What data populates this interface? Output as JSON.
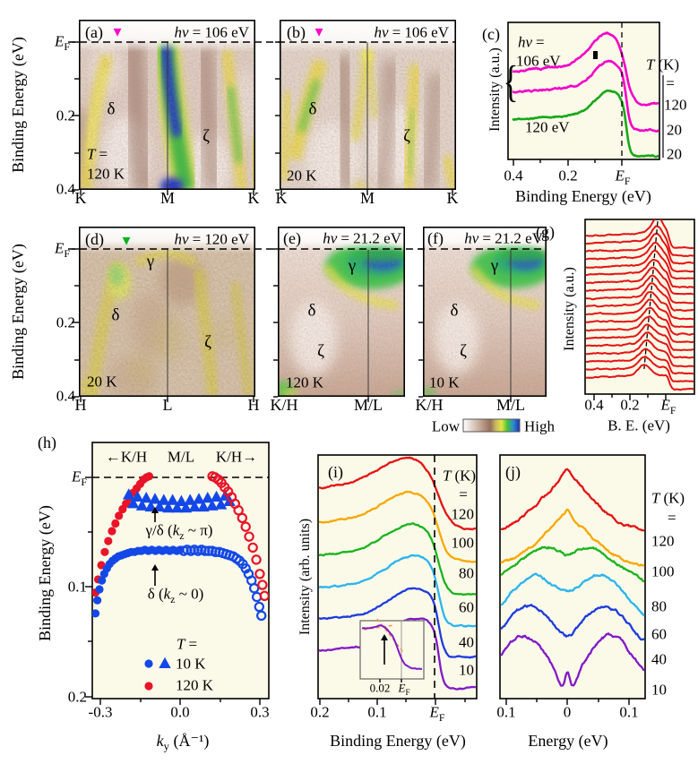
{
  "labels": {
    "be_ev": "Binding Energy (eV)",
    "ef_main": "E",
    "ef_sub": "F",
    "t02": "0.2",
    "t04": "0.4",
    "t01": "0.1",
    "t00": "0",
    "a_tag": "(a)",
    "b_tag": "(b)",
    "c_tag": "(c)",
    "d_tag": "(d)",
    "e_tag": "(e)",
    "f_tag": "(f)",
    "g_tag": "(g)",
    "h_tag": "(h)",
    "i_tag": "(i)",
    "j_tag": "(j)",
    "hv": "hν",
    "eq": "=",
    "eq106": "= 106 eV",
    "eq120": "= 120 eV",
    "eq212": "= 21.2 eV",
    "c_106": "106 eV",
    "c_120": "120 eV",
    "delta": "δ",
    "zeta": "ζ",
    "gamma": "γ",
    "T_it": "T",
    "k_unit": "(K)",
    "a_T": "120 K",
    "b_T": "20 K",
    "d_T": "20 K",
    "e_T": "120 K",
    "f_T": "10 K",
    "K": "K",
    "M": "M",
    "H": "H",
    "L_pt": "L",
    "KH": "K/H",
    "ML": "M/L",
    "intensity_au": "Intensity (a.u.)",
    "intensity_arb": "Intensity (arb. units)",
    "low": "Low",
    "high": "High",
    "g_xlabel": "B. E. (eV)",
    "c_temps": [
      "120",
      "20",
      "20"
    ],
    "ij_temps": [
      "120",
      "100",
      "80",
      "60",
      "40",
      "10"
    ],
    "h_top_left": "←K/H",
    "h_top_mid": "M/L",
    "h_top_right": "K/H→",
    "h_ann1_a": "γ/δ (",
    "h_ann1_k": "k",
    "h_ann1_z": "z",
    "h_ann1_b": " ~ π)",
    "h_ann2_a": "δ (",
    "h_ann2_b": " ~ 0)",
    "h_10K": "10 K",
    "h_120K": "120 K",
    "h_xm03": "-0.3",
    "h_x00": "0.0",
    "h_x03": "0.3",
    "ky_k": "k",
    "ky_sub": "y",
    "ky_unit": " (Å⁻¹)",
    "j_xlabel": "Energy (eV)",
    "i_inset_tick": "0.02",
    "brace": "{"
  },
  "icons": {
    "down_triangle": "▼"
  },
  "colors": {
    "magenta": "#f400c8",
    "green_curve": "#18a818",
    "cut_marker_a": "#ff00cc",
    "cut_marker_d": "#00b41e",
    "red": "#e41414",
    "orange": "#f7a800",
    "green": "#1cb41c",
    "cyan": "#2cb4f0",
    "blue": "#1e3cdc",
    "purple": "#8219c8",
    "scatter_blue": "#1448e6",
    "scatter_red": "#e81428",
    "panel_bg": "#fbfae9"
  },
  "chart_data": [
    {
      "id": "a",
      "type": "heatmap",
      "hv_eV": 106,
      "T_K": 120,
      "k_path": [
        "K",
        "M",
        "K"
      ],
      "bands": [
        "δ",
        "ζ"
      ],
      "yticks": [
        "EF",
        "0.2",
        "0.4"
      ],
      "colormap": "Low:white -> brown -> yellow -> green -> blue:High"
    },
    {
      "id": "b",
      "type": "heatmap",
      "hv_eV": 106,
      "T_K": 20,
      "k_path": [
        "K",
        "M",
        "K"
      ],
      "bands": [
        "δ",
        "ζ"
      ]
    },
    {
      "id": "c",
      "type": "line",
      "ylabel": "Intensity (a.u.)",
      "xlabel": "Binding Energy (eV)",
      "xticks": [
        "0.4",
        "0.2",
        "EF"
      ],
      "right_label": "T (K) =",
      "curves": [
        {
          "label": "106 eV",
          "T_K": 120,
          "color": "#f400c8",
          "base": 80,
          "lift": 26,
          "amp": 34,
          "peak_eV": 0.055,
          "peak_w": 0.062,
          "drop": 36,
          "edge_w": 0.013,
          "edge0": -0.018,
          "jit": 1.4
        },
        {
          "label": "106 eV",
          "T_K": 20,
          "color": "#f400c8",
          "base": 103,
          "lift": 22,
          "amp": 26,
          "peak_eV": 0.05,
          "peak_w": 0.055,
          "drop": 42,
          "edge_w": 0.007,
          "edge0": -0.018,
          "jit": 1.4
        },
        {
          "label": "120 eV",
          "T_K": 20,
          "color": "#18a818",
          "base": 133,
          "lift": 20,
          "amp": 24,
          "peak_eV": 0.046,
          "peak_w": 0.052,
          "drop": 41,
          "edge_w": 0.007,
          "edge0": -0.018,
          "jit": 1.2
        }
      ]
    },
    {
      "id": "d",
      "type": "heatmap",
      "hv_eV": 120,
      "T_K": 20,
      "k_path": [
        "H",
        "L",
        "H"
      ],
      "bands": [
        "γ",
        "δ",
        "ζ"
      ]
    },
    {
      "id": "e",
      "type": "heatmap",
      "hv_eV": 21.2,
      "T_K": 120,
      "k_path": [
        "K/H",
        "M/L"
      ],
      "bands": [
        "γ",
        "δ",
        "ζ"
      ]
    },
    {
      "id": "f",
      "type": "heatmap",
      "hv_eV": 21.2,
      "T_K": 10,
      "k_path": [
        "K/H",
        "M/L"
      ],
      "bands": [
        "γ",
        "δ",
        "ζ"
      ]
    },
    {
      "id": "g",
      "type": "edc-stack",
      "color": "#e41414",
      "n": 19,
      "ylabel": "Intensity (a.u.)",
      "xlabel": "B. E. (eV)",
      "xticks": [
        "0.4",
        "0.2",
        "EF"
      ],
      "base_y0": 263,
      "base_dy": 8.8,
      "amp0": 17,
      "amp_d": -0.32,
      "peak_eV0": 0.045,
      "peak_eV_d": 0.0042,
      "lift": 7,
      "peak_w": 0.032,
      "drop": 13,
      "edge_w": 0.007,
      "edge0": -0.02,
      "jit": 0.9,
      "peak_guide": "dashed line through dispersing peak positions"
    },
    {
      "id": "h",
      "type": "scatter",
      "xlabel": "ky (Å⁻¹)",
      "ylabel": "Binding Energy (eV)",
      "xticks": [
        "-0.3",
        "0.0",
        "0.3"
      ],
      "yticks": [
        "EF",
        "0.1",
        "0.2"
      ],
      "annotations": [
        "γ/δ (kz ~ π)",
        "δ (kz ~ 0)"
      ],
      "legend": [
        {
          "T": "10 K",
          "markers": [
            "blue circle",
            "blue triangle"
          ]
        },
        {
          "T": "120 K",
          "markers": [
            "red circle"
          ]
        }
      ],
      "series": [
        {
          "name": "120 K band (left)",
          "marker": "circle",
          "fill": true,
          "color": "#e81428",
          "points": [
            [
              -0.32,
              0.105
            ],
            [
              -0.31,
              0.093
            ],
            [
              -0.298,
              0.08
            ],
            [
              -0.285,
              0.068
            ],
            [
              -0.272,
              0.058
            ],
            [
              -0.258,
              0.049
            ],
            [
              -0.245,
              0.042
            ],
            [
              -0.232,
              0.035
            ],
            [
              -0.218,
              0.029
            ],
            [
              -0.205,
              0.024
            ],
            [
              -0.192,
              0.019
            ],
            [
              -0.178,
              0.014
            ],
            [
              -0.165,
              0.01
            ],
            [
              -0.152,
              0.006
            ],
            [
              -0.14,
              0.002
            ],
            [
              -0.128,
              0.0
            ],
            [
              -0.118,
              -0.001
            ]
          ]
        },
        {
          "name": "10 K δ (kz~0) left",
          "marker": "circle",
          "fill": true,
          "color": "#1448e6",
          "points": [
            [
              -0.32,
              0.124
            ],
            [
              -0.313,
              0.112
            ],
            [
              -0.305,
              0.102
            ],
            [
              -0.296,
              0.094
            ],
            [
              -0.287,
              0.088
            ],
            [
              -0.277,
              0.083
            ],
            [
              -0.267,
              0.079
            ],
            [
              -0.256,
              0.076
            ],
            [
              -0.245,
              0.074
            ],
            [
              -0.234,
              0.072
            ],
            [
              -0.222,
              0.071
            ],
            [
              -0.21,
              0.07
            ],
            [
              -0.198,
              0.069
            ],
            [
              -0.186,
              0.068
            ],
            [
              -0.173,
              0.068
            ],
            [
              -0.16,
              0.067
            ],
            [
              -0.147,
              0.067
            ],
            [
              -0.134,
              0.066
            ],
            [
              -0.121,
              0.067
            ],
            [
              -0.108,
              0.066
            ],
            [
              -0.094,
              0.067
            ],
            [
              -0.081,
              0.066
            ],
            [
              -0.068,
              0.067
            ],
            [
              -0.054,
              0.066
            ],
            [
              -0.041,
              0.067
            ],
            [
              -0.028,
              0.066
            ],
            [
              -0.014,
              0.067
            ],
            [
              -0.001,
              0.066
            ]
          ]
        },
        {
          "name": "10 K δ (kz~0) right",
          "marker": "circle",
          "fill": false,
          "color": "#1448e6",
          "points": [
            [
              0.012,
              0.067
            ],
            [
              0.025,
              0.066
            ],
            [
              0.039,
              0.067
            ],
            [
              0.052,
              0.066
            ],
            [
              0.066,
              0.067
            ],
            [
              0.079,
              0.066
            ],
            [
              0.092,
              0.067
            ],
            [
              0.106,
              0.067
            ],
            [
              0.119,
              0.067
            ],
            [
              0.132,
              0.068
            ],
            [
              0.146,
              0.068
            ],
            [
              0.159,
              0.069
            ],
            [
              0.172,
              0.07
            ],
            [
              0.185,
              0.071
            ],
            [
              0.198,
              0.072
            ],
            [
              0.21,
              0.074
            ],
            [
              0.222,
              0.076
            ],
            [
              0.234,
              0.079
            ],
            [
              0.245,
              0.083
            ],
            [
              0.256,
              0.088
            ],
            [
              0.267,
              0.094
            ],
            [
              0.277,
              0.101
            ],
            [
              0.287,
              0.109
            ],
            [
              0.296,
              0.118
            ],
            [
              0.304,
              0.126
            ]
          ]
        },
        {
          "name": "10 K γ/δ (kz~π)",
          "marker": "triangle",
          "fill": true,
          "color": "#1448e6",
          "points": [
            [
              -0.195,
              0.016
            ],
            [
              -0.178,
              0.024
            ],
            [
              -0.162,
              0.018
            ],
            [
              -0.145,
              0.026
            ],
            [
              -0.129,
              0.019
            ],
            [
              -0.112,
              0.027
            ],
            [
              -0.096,
              0.02
            ],
            [
              -0.079,
              0.027
            ],
            [
              -0.063,
              0.021
            ],
            [
              -0.046,
              0.028
            ],
            [
              -0.03,
              0.021
            ],
            [
              -0.013,
              0.028
            ],
            [
              0.003,
              0.022
            ],
            [
              0.02,
              0.028
            ],
            [
              0.036,
              0.021
            ],
            [
              0.053,
              0.027
            ],
            [
              0.069,
              0.02
            ],
            [
              0.086,
              0.027
            ],
            [
              0.102,
              0.019
            ],
            [
              0.119,
              0.026
            ],
            [
              0.135,
              0.018
            ],
            [
              0.152,
              0.025
            ],
            [
              0.168,
              0.017
            ],
            [
              0.184,
              0.022
            ]
          ]
        },
        {
          "name": "120 K band (right)",
          "marker": "circle",
          "fill": false,
          "color": "#e81428",
          "points": [
            [
              0.12,
              -0.001
            ],
            [
              0.13,
              0.0
            ],
            [
              0.142,
              0.002
            ],
            [
              0.154,
              0.005
            ],
            [
              0.166,
              0.009
            ],
            [
              0.179,
              0.013
            ],
            [
              0.192,
              0.018
            ],
            [
              0.205,
              0.024
            ],
            [
              0.218,
              0.03
            ],
            [
              0.232,
              0.037
            ],
            [
              0.245,
              0.045
            ],
            [
              0.258,
              0.054
            ],
            [
              0.272,
              0.064
            ],
            [
              0.285,
              0.075
            ],
            [
              0.298,
              0.088
            ],
            [
              0.308,
              0.098
            ],
            [
              0.316,
              0.108
            ]
          ]
        }
      ]
    },
    {
      "id": "i",
      "type": "line",
      "ylabel": "Intensity (arb. units)",
      "xlabel": "Binding Energy (eV)",
      "xticks": [
        "0.2",
        "0.1",
        "EF"
      ],
      "right_label": "T (K) =",
      "temps_K": [
        120,
        100,
        80,
        60,
        40,
        10
      ],
      "curves": [
        {
          "T_K": 120,
          "color": "#e41414",
          "base": 545,
          "lift": 45,
          "amp": 27,
          "peak_eV": 0.045,
          "peak_w": 0.05,
          "drop": 46,
          "edge_w": 0.011,
          "edge0": -0.008,
          "jit": 1.1
        },
        {
          "T_K": 100,
          "color": "#f7a800",
          "base": 583,
          "lift": 42,
          "amp": 27,
          "peak_eV": 0.043,
          "peak_w": 0.048,
          "drop": 44,
          "edge_w": 0.009,
          "edge0": -0.008,
          "jit": 1.1
        },
        {
          "T_K": 80,
          "color": "#1cb41c",
          "base": 620,
          "lift": 40,
          "amp": 28,
          "peak_eV": 0.04,
          "peak_w": 0.046,
          "drop": 44,
          "edge_w": 0.0075,
          "edge0": -0.008,
          "jit": 1.1
        },
        {
          "T_K": 60,
          "color": "#2cb4f0",
          "base": 656,
          "lift": 38,
          "amp": 29,
          "peak_eV": 0.038,
          "peak_w": 0.044,
          "drop": 43,
          "edge_w": 0.006,
          "edge0": -0.008,
          "jit": 1.1
        },
        {
          "T_K": 40,
          "color": "#1e3cdc",
          "base": 691,
          "lift": 36,
          "amp": 29,
          "peak_eV": 0.036,
          "peak_w": 0.042,
          "drop": 43,
          "edge_w": 0.005,
          "edge0": -0.008,
          "jit": 1.1
        },
        {
          "T_K": 10,
          "color": "#8219c8",
          "base": 726,
          "lift": 34,
          "amp": 30,
          "peak_eV": 0.034,
          "peak_w": 0.04,
          "drop": 42,
          "edge_w": 0.004,
          "edge0": -0.008,
          "jit": 1.1
        }
      ],
      "inset": {
        "tick_eV": "0.02",
        "note": "kink marked by arrow near 0.02 eV below EF"
      }
    },
    {
      "id": "j",
      "type": "sym-edc",
      "xlabel": "Energy (eV)",
      "xticks": [
        "0.1",
        "0",
        "0.1"
      ],
      "temps_K": [
        120,
        100,
        80,
        60,
        40,
        10
      ],
      "curves": [
        {
          "T_K": 120,
          "color": "#e41414",
          "base": 600,
          "tri": 50,
          "td": 0.055,
          "A": 13,
          "p": 0,
          "w": 0.05,
          "D": 0,
          "dw": 0.01,
          "S": 0,
          "sw": 0.004,
          "jit": 2.0
        },
        {
          "T_K": 100,
          "color": "#f7a800",
          "base": 636,
          "tri": 40,
          "td": 0.05,
          "A": 14,
          "p": 0.02,
          "w": 0.045,
          "D": 0,
          "dw": 0.01,
          "S": 0,
          "sw": 0.004,
          "jit": 2.0
        },
        {
          "T_K": 80,
          "color": "#1cb41c",
          "base": 668,
          "tri": 0,
          "td": 1,
          "A": 45,
          "p": 0.05,
          "w": 0.055,
          "D": 10,
          "dw": 0.012,
          "S": 0,
          "sw": 0.004,
          "jit": 2.0
        },
        {
          "T_K": 60,
          "color": "#2cb4f0",
          "base": 700,
          "tri": 0,
          "td": 1,
          "A": 55,
          "p": 0.055,
          "w": 0.042,
          "D": 7,
          "dw": 0.018,
          "S": 0,
          "sw": 0.004,
          "jit": 2.0
        },
        {
          "T_K": 40,
          "color": "#1e3cdc",
          "base": 730,
          "tri": 0,
          "td": 1,
          "A": 52,
          "p": 0.062,
          "w": 0.04,
          "D": 12,
          "dw": 0.014,
          "S": 0,
          "sw": 0.004,
          "jit": 2.0
        },
        {
          "T_K": 10,
          "color": "#8219c8",
          "base": 762,
          "tri": 0,
          "td": 1,
          "A": 52,
          "p": 0.07,
          "w": 0.035,
          "D": 26,
          "dw": 0.013,
          "S": 24,
          "sw": 0.0045,
          "jit": 2.2
        }
      ]
    }
  ]
}
